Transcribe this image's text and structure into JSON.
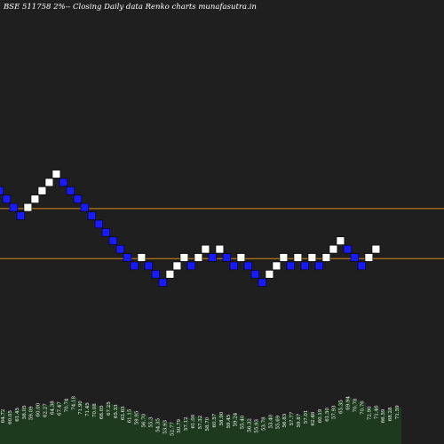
{
  "header": {
    "title": "BSE 511758  2%-- Closing Daily data Renko  charts munafasutra.in"
  },
  "chart_data": {
    "type": "renko",
    "title": "BSE 511758  2%-- Closing Daily data Renko  charts munafasutra.in",
    "brick_pct": 2,
    "bricks": [
      {
        "dir": "down",
        "level": -2
      },
      {
        "dir": "down",
        "level": -3
      },
      {
        "dir": "down",
        "level": -4
      },
      {
        "dir": "down",
        "level": -5
      },
      {
        "dir": "up",
        "level": -4
      },
      {
        "dir": "up",
        "level": -3
      },
      {
        "dir": "up",
        "level": -2
      },
      {
        "dir": "up",
        "level": -1
      },
      {
        "dir": "up",
        "level": 0
      },
      {
        "dir": "down",
        "level": -1
      },
      {
        "dir": "down",
        "level": -2
      },
      {
        "dir": "down",
        "level": -3
      },
      {
        "dir": "down",
        "level": -4
      },
      {
        "dir": "down",
        "level": -5
      },
      {
        "dir": "down",
        "level": -6
      },
      {
        "dir": "down",
        "level": -7
      },
      {
        "dir": "down",
        "level": -8
      },
      {
        "dir": "down",
        "level": -9
      },
      {
        "dir": "down",
        "level": -10
      },
      {
        "dir": "down",
        "level": -11
      },
      {
        "dir": "up",
        "level": -10
      },
      {
        "dir": "down",
        "level": -11
      },
      {
        "dir": "down",
        "level": -12
      },
      {
        "dir": "down",
        "level": -13
      },
      {
        "dir": "up",
        "level": -12
      },
      {
        "dir": "up",
        "level": -11
      },
      {
        "dir": "up",
        "level": -10
      },
      {
        "dir": "down",
        "level": -11
      },
      {
        "dir": "up",
        "level": -10
      },
      {
        "dir": "up",
        "level": -9
      },
      {
        "dir": "down",
        "level": -10
      },
      {
        "dir": "up",
        "level": -9
      },
      {
        "dir": "down",
        "level": -10
      },
      {
        "dir": "down",
        "level": -11
      },
      {
        "dir": "up",
        "level": -10
      },
      {
        "dir": "down",
        "level": -11
      },
      {
        "dir": "down",
        "level": -12
      },
      {
        "dir": "down",
        "level": -13
      },
      {
        "dir": "up",
        "level": -12
      },
      {
        "dir": "up",
        "level": -11
      },
      {
        "dir": "up",
        "level": -10
      },
      {
        "dir": "down",
        "level": -11
      },
      {
        "dir": "up",
        "level": -10
      },
      {
        "dir": "down",
        "level": -11
      },
      {
        "dir": "up",
        "level": -10
      },
      {
        "dir": "down",
        "level": -11
      },
      {
        "dir": "up",
        "level": -10
      },
      {
        "dir": "up",
        "level": -9
      },
      {
        "dir": "up",
        "level": -8
      },
      {
        "dir": "down",
        "level": -9
      },
      {
        "dir": "down",
        "level": -10
      },
      {
        "dir": "down",
        "level": -11
      },
      {
        "dir": "up",
        "level": -10
      },
      {
        "dir": "up",
        "level": -9
      }
    ],
    "reference_lines": [
      {
        "level": -3.6,
        "color": "#d98c1a"
      },
      {
        "level": -9.6,
        "color": "#d98c1a"
      }
    ],
    "volume_labels": [
      "64.72",
      "60.05",
      "61.45",
      "58.05",
      "59.09",
      "60.00",
      "62.27",
      "64.38",
      "67.47",
      "70.74",
      "74.18",
      "71.90",
      "71.45",
      "70.08",
      "68.05",
      "67.25",
      "65.33",
      "62.63",
      "61.15",
      "59.95",
      "56.70",
      "55.3",
      "54.35",
      "53.93",
      "52.77",
      "50.79",
      "57.12",
      "61.00",
      "57.32",
      "58.70",
      "60.57",
      "58.90",
      "59.45",
      "59.24",
      "55.40",
      "56.32",
      "55.93",
      "53.78",
      "53.40",
      "55.69",
      "56.83",
      "57.77",
      "59.87",
      "57.01",
      "62.48",
      "60.19",
      "61.50",
      "57.93",
      "65.35",
      "69.94",
      "70.78",
      "70.76",
      "72.90",
      "71.46",
      "66.59",
      "68.28",
      "71.59"
    ],
    "volume_heights": [
      0.72,
      0.69,
      0.75,
      0.8,
      0.78,
      0.85,
      0.84,
      0.9,
      0.88,
      0.95,
      1.0,
      0.9,
      0.86,
      0.84,
      0.8,
      0.88,
      0.82,
      0.78,
      0.72,
      0.68,
      0.62,
      0.55,
      0.52,
      0.48,
      0.44,
      0.5,
      0.55,
      0.6,
      0.58,
      0.54,
      0.62,
      0.66,
      0.6,
      0.64,
      0.58,
      0.52,
      0.5,
      0.55,
      0.6,
      0.58,
      0.62,
      0.66,
      0.62,
      0.7,
      0.66,
      0.72,
      0.75,
      0.8,
      0.92,
      1.0,
      0.95,
      0.9,
      0.78,
      0.8,
      0.72,
      0.76,
      0.8
    ],
    "colors": {
      "up": "#ffffff",
      "down": "#1a1aff",
      "volume": "#1e3a1e",
      "reference": "#d98c1a",
      "background": "#1f1f1f"
    }
  }
}
